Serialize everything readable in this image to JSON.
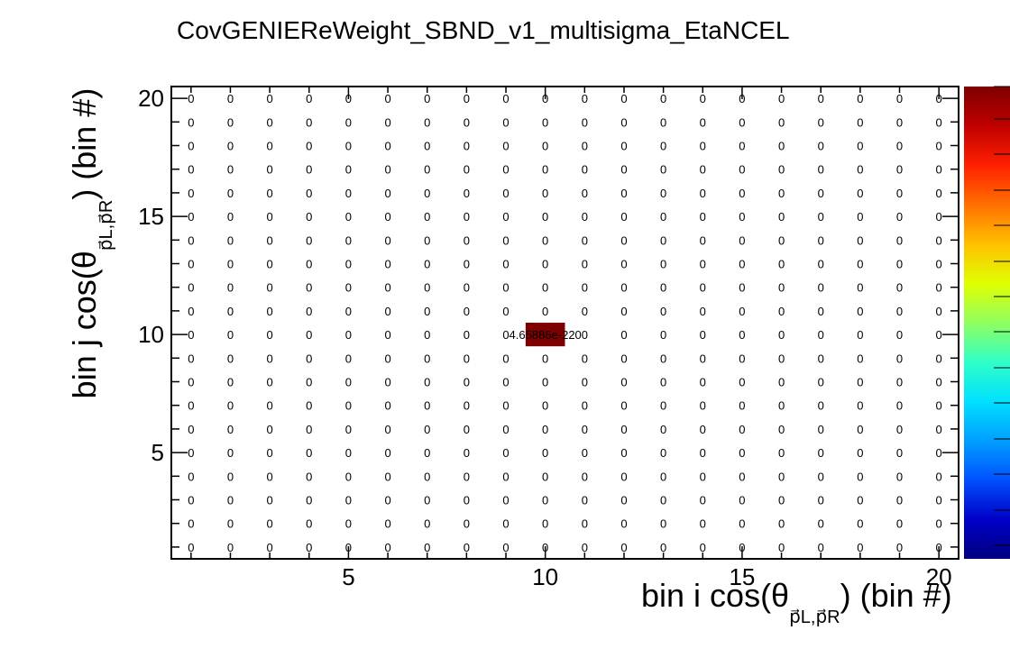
{
  "title": "CovGENIEReWeight_SBND_v1_multisigma_EtaNCEL",
  "axis_labels": {
    "x_main": "bin i cos(θ",
    "x_sub": "p⃗L,p⃗R",
    "x_tail": ") (bin #)",
    "y_main": "bin j cos(θ",
    "y_sub": "p⃗L,p⃗R",
    "y_tail": ") (bin #)"
  },
  "colors": {
    "highlight_cell": "#7f0000",
    "frame": "#000000",
    "palette": [
      "#00007f",
      "#0000c8",
      "#0050ff",
      "#00a0ff",
      "#00e0ff",
      "#30ffc8",
      "#90ff60",
      "#e0ff00",
      "#ffc000",
      "#ff7000",
      "#ff2000",
      "#c00000",
      "#7f0000"
    ]
  },
  "chart_data": {
    "type": "heatmap",
    "title": "CovGENIEReWeight_SBND_v1_multisigma_EtaNCEL",
    "xlabel": "bin i cos(θ_{p⃗L,p⃗R}) (bin #)",
    "ylabel": "bin j cos(θ_{p⃗L,p⃗R}) (bin #)",
    "nx": 20,
    "ny": 20,
    "xlim": [
      0.5,
      20.5
    ],
    "ylim": [
      0.5,
      20.5
    ],
    "x_ticks": [
      5,
      10,
      15,
      20
    ],
    "y_ticks": [
      5,
      10,
      15,
      20
    ],
    "x_tick_labels": [
      "5",
      "10",
      "15",
      "20"
    ],
    "y_tick_labels": [
      "5",
      "10",
      "15",
      "20"
    ],
    "default_cell_label": "0",
    "nonzero_cells": [
      {
        "x": 10,
        "y": 10,
        "value": 4.65886e-220,
        "label": "4.65886e-220"
      }
    ],
    "colorbar": {
      "min": 0,
      "max": 4.65886e-220,
      "tick_labels": []
    }
  }
}
